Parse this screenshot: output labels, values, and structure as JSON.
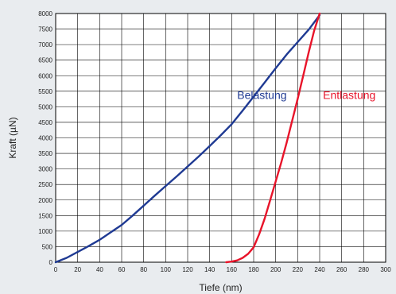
{
  "chart_data": {
    "type": "line",
    "xlabel": "Tiefe (nm)",
    "ylabel": "Kraft (µN)",
    "xlim": [
      0,
      300
    ],
    "ylim": [
      0,
      8000
    ],
    "x_ticks": [
      0,
      20,
      40,
      60,
      80,
      100,
      120,
      140,
      160,
      180,
      200,
      220,
      240,
      260,
      280,
      300
    ],
    "y_ticks": [
      0,
      500,
      1000,
      1500,
      2000,
      2500,
      3000,
      3500,
      4000,
      4500,
      5000,
      5500,
      6000,
      6500,
      7000,
      7500,
      8000
    ],
    "grid": true,
    "series": [
      {
        "name": "Belastung",
        "color": "#1f3a93",
        "label_at": [
          165,
          5250
        ],
        "x": [
          0,
          10,
          20,
          30,
          40,
          50,
          60,
          70,
          80,
          90,
          100,
          110,
          120,
          130,
          140,
          150,
          160,
          170,
          180,
          190,
          200,
          210,
          220,
          230,
          240
        ],
        "y": [
          0,
          140,
          330,
          520,
          720,
          960,
          1200,
          1500,
          1820,
          2140,
          2450,
          2760,
          3080,
          3400,
          3740,
          4080,
          4440,
          4880,
          5330,
          5780,
          6240,
          6680,
          7080,
          7480,
          7950
        ]
      },
      {
        "name": "Entlastung",
        "color": "#e8142a",
        "label_at": [
          243,
          5250
        ],
        "x": [
          155,
          160,
          165,
          170,
          175,
          180,
          185,
          190,
          195,
          200,
          205,
          210,
          215,
          220,
          225,
          230,
          235,
          240
        ],
        "y": [
          0,
          20,
          60,
          140,
          270,
          480,
          900,
          1400,
          2000,
          2600,
          3200,
          3850,
          4550,
          5250,
          6000,
          6750,
          7450,
          8000
        ]
      }
    ]
  }
}
